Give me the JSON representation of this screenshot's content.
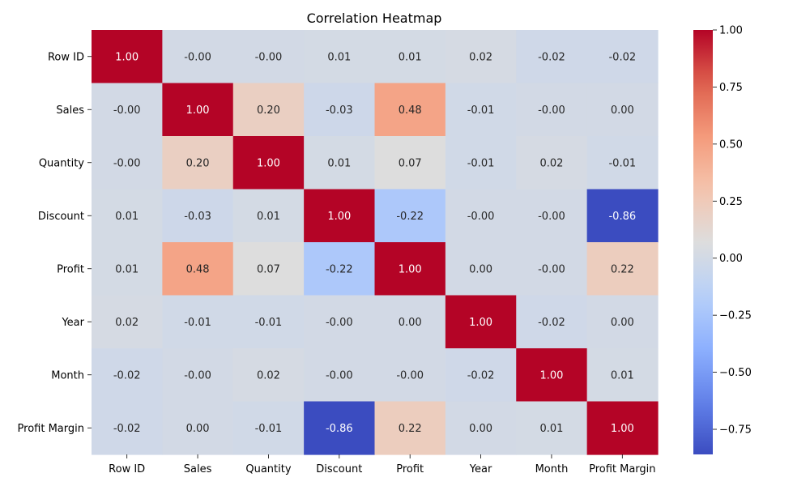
{
  "chart_data": {
    "type": "heatmap",
    "title": "Correlation Heatmap",
    "xlabel": "",
    "ylabel": "",
    "categories": [
      "Row ID",
      "Sales",
      "Quantity",
      "Discount",
      "Profit",
      "Year",
      "Month",
      "Profit Margin"
    ],
    "values": [
      [
        1.0,
        -0.0,
        -0.0,
        0.01,
        0.01,
        0.02,
        -0.02,
        -0.02
      ],
      [
        -0.0,
        1.0,
        0.2,
        -0.03,
        0.48,
        -0.01,
        -0.0,
        0.0
      ],
      [
        -0.0,
        0.2,
        1.0,
        0.01,
        0.07,
        -0.01,
        0.02,
        -0.01
      ],
      [
        0.01,
        -0.03,
        0.01,
        1.0,
        -0.22,
        -0.0,
        -0.0,
        -0.86
      ],
      [
        0.01,
        0.48,
        0.07,
        -0.22,
        1.0,
        0.0,
        -0.0,
        0.22
      ],
      [
        0.02,
        -0.01,
        -0.01,
        -0.0,
        0.0,
        1.0,
        -0.02,
        0.0
      ],
      [
        -0.02,
        -0.0,
        0.02,
        -0.0,
        -0.0,
        -0.02,
        1.0,
        0.01
      ],
      [
        -0.02,
        0.0,
        -0.01,
        -0.86,
        0.22,
        0.0,
        0.01,
        1.0
      ]
    ],
    "value_labels": [
      [
        "1.00",
        "-0.00",
        "-0.00",
        "0.01",
        "0.01",
        "0.02",
        "-0.02",
        "-0.02"
      ],
      [
        "-0.00",
        "1.00",
        "0.20",
        "-0.03",
        "0.48",
        "-0.01",
        "-0.00",
        "0.00"
      ],
      [
        "-0.00",
        "0.20",
        "1.00",
        "0.01",
        "0.07",
        "-0.01",
        "0.02",
        "-0.01"
      ],
      [
        "0.01",
        "-0.03",
        "0.01",
        "1.00",
        "-0.22",
        "-0.00",
        "-0.00",
        "-0.86"
      ],
      [
        "0.01",
        "0.48",
        "0.07",
        "-0.22",
        "1.00",
        "0.00",
        "-0.00",
        "0.22"
      ],
      [
        "0.02",
        "-0.01",
        "-0.01",
        "-0.00",
        "0.00",
        "1.00",
        "-0.02",
        "0.00"
      ],
      [
        "-0.02",
        "-0.00",
        "0.02",
        "-0.00",
        "-0.00",
        "-0.02",
        "1.00",
        "0.01"
      ],
      [
        "-0.02",
        "0.00",
        "-0.01",
        "-0.86",
        "0.22",
        "0.00",
        "0.01",
        "1.00"
      ]
    ],
    "colormap": "coolwarm",
    "color_range": [
      -0.86,
      1.0
    ],
    "colorbar_ticks": [
      1.0,
      0.75,
      0.5,
      0.25,
      0.0,
      -0.25,
      -0.5,
      -0.75
    ],
    "colorbar_tick_labels": [
      "1.00",
      "0.75",
      "0.50",
      "0.25",
      "0.00",
      "−0.25",
      "−0.50",
      "−0.75"
    ],
    "colorbar_position": "right",
    "grid": false
  }
}
